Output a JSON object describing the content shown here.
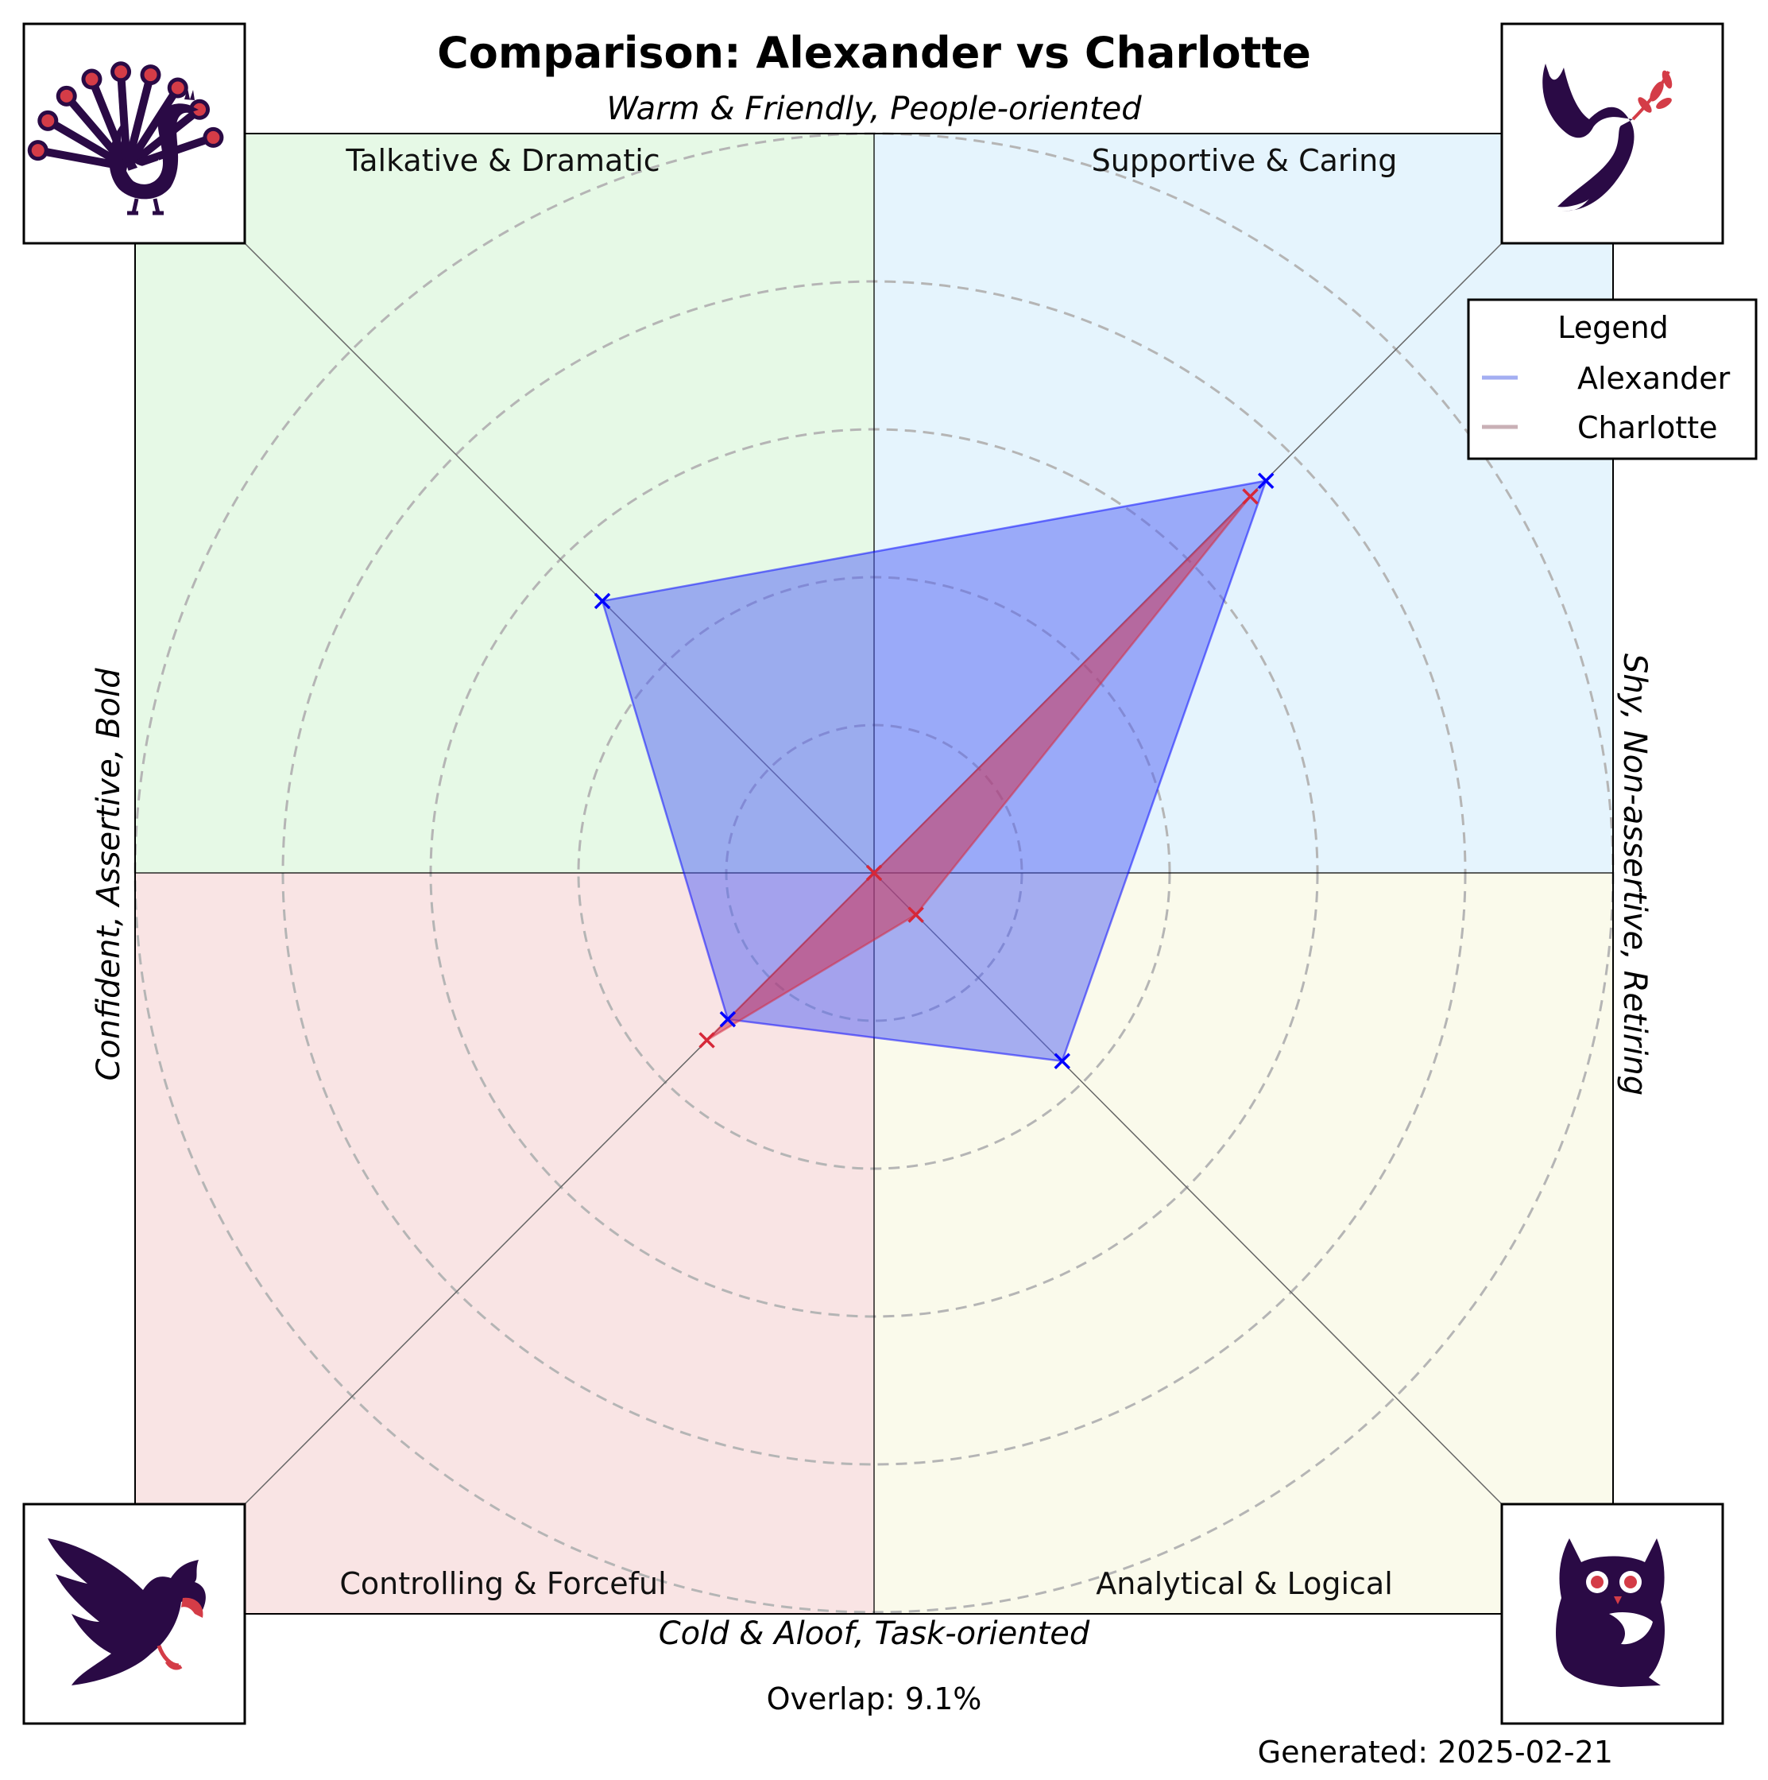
{
  "chart_data": {
    "type": "radar",
    "title": "Comparison: Alexander vs Charlotte",
    "axes": {
      "top": "Warm & Friendly, People-oriented",
      "bottom": "Cold & Aloof, Task-oriented",
      "left": "Confident, Assertive, Bold",
      "right": "Shy, Non-assertive, Retiring"
    },
    "quadrants": [
      {
        "label": "Talkative & Dramatic",
        "position": "top-left",
        "color": "#e6f9e6",
        "icon": "peacock-icon"
      },
      {
        "label": "Supportive & Caring",
        "position": "top-right",
        "color": "#e5f4fd",
        "icon": "dove-icon"
      },
      {
        "label": "Controlling & Forceful",
        "position": "bottom-left",
        "color": "#f9e4e4",
        "icon": "eagle-icon"
      },
      {
        "label": "Analytical & Logical",
        "position": "bottom-right",
        "color": "#fafaeb",
        "icon": "owl-icon"
      }
    ],
    "directions": [
      "Supportive & Caring",
      "Analytical & Logical",
      "Controlling & Forceful",
      "Talkative & Dramatic"
    ],
    "rmax": 5,
    "rings": [
      1,
      2,
      3,
      4,
      5
    ],
    "series": [
      {
        "name": "Alexander",
        "values": [
          3.75,
          1.8,
          1.4,
          2.6
        ],
        "line_color": "#a3aef2",
        "fill_color": "#4f5ff5",
        "marker_color": "#0000ff"
      },
      {
        "name": "Charlotte",
        "values": [
          3.6,
          0.4,
          1.6,
          0.0
        ],
        "line_color": "#c9b0b6",
        "fill_color": "#cc3355",
        "marker_color": "#d62839"
      }
    ],
    "legend": {
      "title": "Legend",
      "position": "top-right"
    },
    "grid": true
  },
  "footer": {
    "overlap": "Overlap: 9.1%",
    "generated": "Generated: 2025-02-21"
  },
  "colors": {
    "icon_dark": "#2a0a45",
    "icon_accent": "#d43c47"
  }
}
